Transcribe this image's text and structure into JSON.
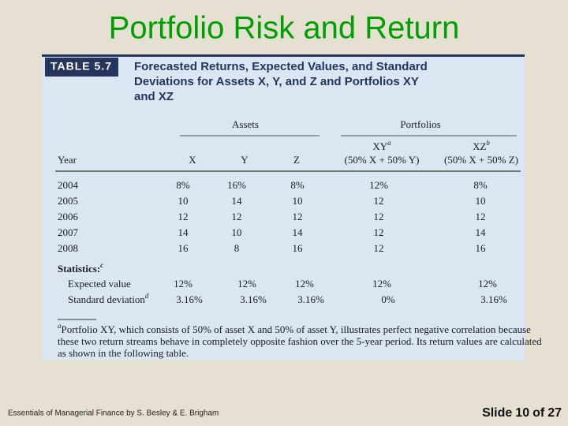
{
  "title": "Portfolio Risk and Return",
  "table": {
    "label": "TABLE 5.7",
    "caption": [
      "Forecasted Returns, Expected Values, and Standard",
      "Deviations for Assets X, Y, and Z and Portfolios XY",
      "and XZ"
    ],
    "groups": [
      "Assets",
      "Portfolios"
    ],
    "columns": [
      {
        "name": "Year"
      },
      {
        "name": "X"
      },
      {
        "name": "Y"
      },
      {
        "name": "Z"
      },
      {
        "name": "XY",
        "note": "a",
        "detail": "(50% X + 50% Y)"
      },
      {
        "name": "XZ",
        "note": "b",
        "detail": "(50% X + 50% Z)"
      }
    ],
    "rows": [
      [
        "2004",
        "8%",
        "16%",
        "8%",
        "12%",
        "8%"
      ],
      [
        "2005",
        "10",
        "14",
        "10",
        "12",
        "10"
      ],
      [
        "2006",
        "12",
        "12",
        "12",
        "12",
        "12"
      ],
      [
        "2007",
        "14",
        "10",
        "14",
        "12",
        "14"
      ],
      [
        "2008",
        "16",
        "8",
        "16",
        "12",
        "16"
      ]
    ],
    "statistics": {
      "label": "Statistics:",
      "note": "c",
      "rows": [
        {
          "label": "Expected value",
          "values": [
            "12%",
            "12%",
            "12%",
            "12%",
            "12%"
          ]
        },
        {
          "label": "Standard deviation",
          "note": "d",
          "values": [
            "3.16%",
            "3.16%",
            "3.16%",
            "0%",
            "3.16%"
          ]
        }
      ]
    },
    "footnote": {
      "note": "a",
      "lines": [
        "Portfolio XY, which consists of 50% of asset X and 50% of asset Y, illustrates perfect negative correlation because",
        "these two return streams behave in completely opposite fashion over the 5-year period. Its return values are calculated",
        "as shown in the following table."
      ]
    }
  },
  "footer": {
    "source": "Essentials of Managerial Finance by S. Besley & E. Brigham",
    "slide": "Slide",
    "number": "10",
    "of": "of",
    "total": "27"
  }
}
